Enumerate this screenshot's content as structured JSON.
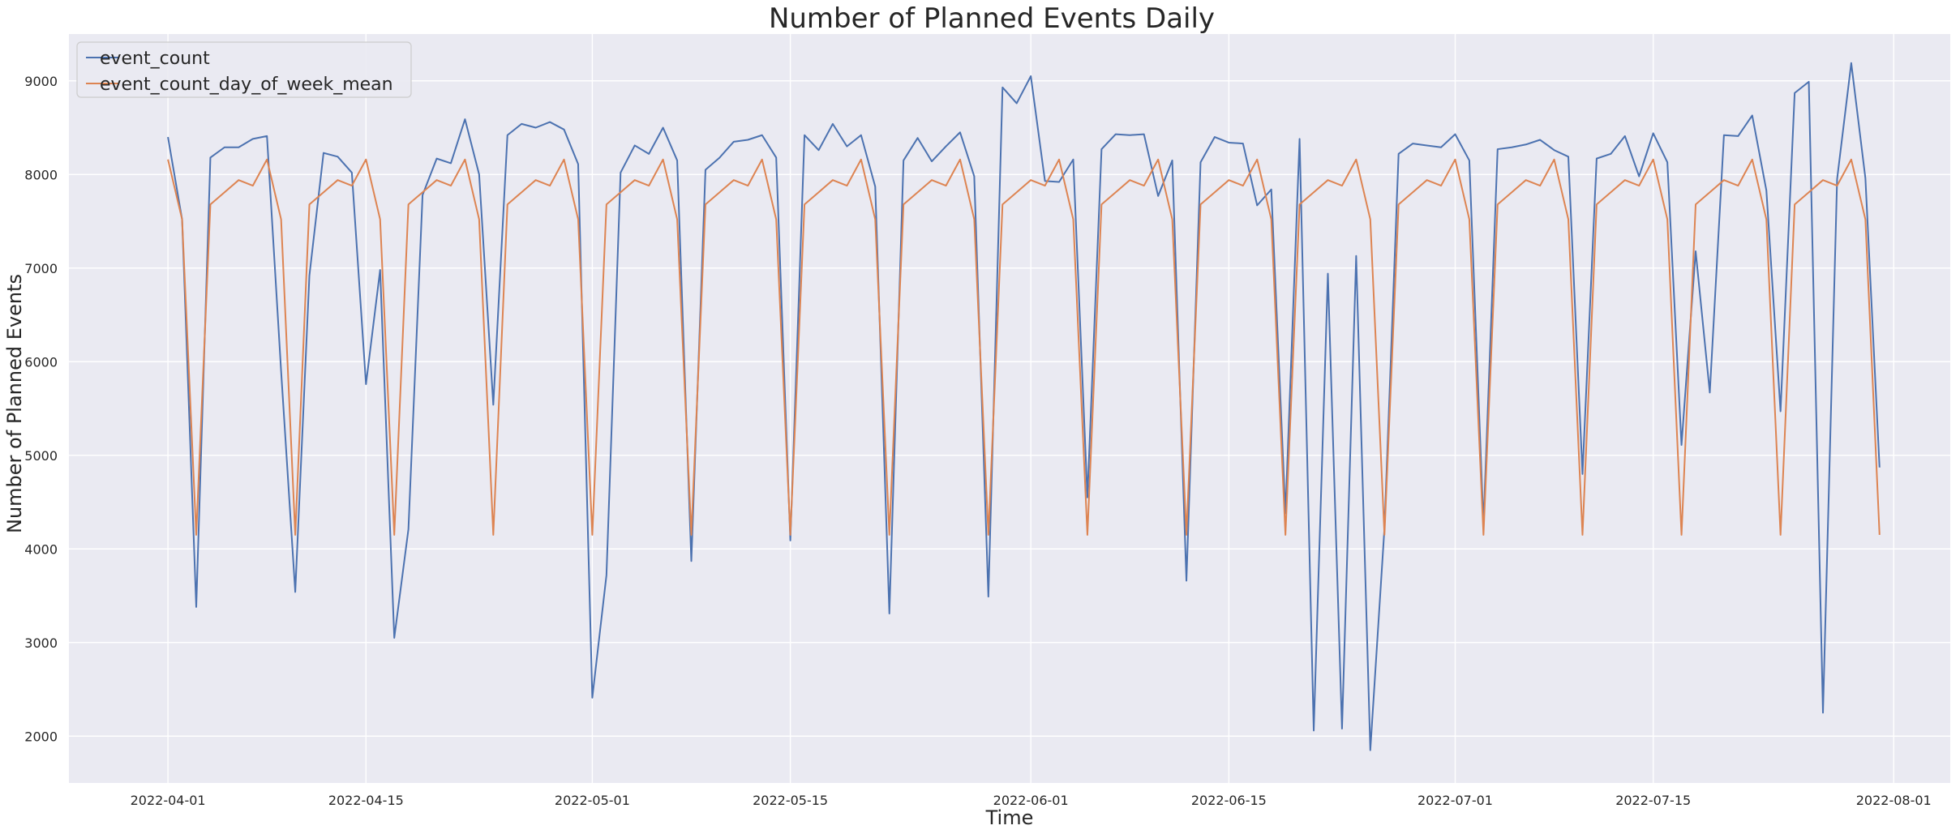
{
  "chart_data": {
    "type": "line",
    "title": "Number of Planned Events Daily",
    "xlabel": "Time",
    "ylabel": "Number of Planned Events",
    "x_start": "2022-04-01",
    "x_end": "2022-07-30",
    "xlim": [
      "2022-03-25",
      "2022-08-05"
    ],
    "ylim": [
      1500,
      9500
    ],
    "x_ticks": [
      {
        "date": "2022-04-01",
        "label": "2022-04-01"
      },
      {
        "date": "2022-04-15",
        "label": "2022-04-15"
      },
      {
        "date": "2022-05-01",
        "label": "2022-05-01"
      },
      {
        "date": "2022-05-15",
        "label": "2022-05-15"
      },
      {
        "date": "2022-06-01",
        "label": "2022-06-01"
      },
      {
        "date": "2022-06-15",
        "label": "2022-06-15"
      },
      {
        "date": "2022-07-01",
        "label": "2022-07-01"
      },
      {
        "date": "2022-07-15",
        "label": "2022-07-15"
      },
      {
        "date": "2022-08-01",
        "label": "2022-08-01"
      }
    ],
    "y_ticks": [
      2000,
      3000,
      4000,
      5000,
      6000,
      7000,
      8000,
      9000
    ],
    "grid": true,
    "legend_position": "top-left",
    "background": "#eaeaf2",
    "series": [
      {
        "name": "event_count",
        "color": "#4c72b0",
        "values": [
          8400,
          7520,
          3380,
          8180,
          8290,
          8290,
          8380,
          8410,
          5900,
          3540,
          6920,
          8230,
          8190,
          8020,
          5760,
          6980,
          3050,
          4210,
          7780,
          8170,
          8120,
          8590,
          8000,
          5540,
          8420,
          8540,
          8500,
          8560,
          8480,
          8110,
          2410,
          3720,
          8020,
          8310,
          8220,
          8500,
          8150,
          3870,
          8050,
          8180,
          8350,
          8370,
          8420,
          8180,
          4090,
          8420,
          8260,
          8540,
          8300,
          8420,
          7870,
          3310,
          8150,
          8390,
          8140,
          8300,
          8450,
          7980,
          3490,
          8930,
          8760,
          9050,
          7930,
          7920,
          8160,
          4550,
          8270,
          8430,
          8420,
          8430,
          7770,
          8150,
          3660,
          8130,
          8400,
          8340,
          8330,
          7670,
          7840,
          4380,
          8380,
          2060,
          6940,
          2080,
          7130,
          1850,
          4220,
          8220,
          8330,
          8310,
          8290,
          8430,
          8150,
          4260,
          8270,
          8290,
          8320,
          8370,
          8260,
          8190,
          4800,
          8170,
          8220,
          8410,
          7980,
          8440,
          8130,
          5110,
          7180,
          5670,
          8420,
          8410,
          8630,
          7830,
          5470,
          8870,
          8990,
          2250,
          7950,
          9190,
          7960,
          4870
        ]
      },
      {
        "name": "event_count_day_of_week_mean",
        "color": "#dd8452",
        "values": [
          8160,
          7520,
          4150,
          7680,
          7810,
          7940,
          7880,
          8160,
          7520,
          4150,
          7680,
          7810,
          7940,
          7880,
          8160,
          7520,
          4150,
          7680,
          7810,
          7940,
          7880,
          8160,
          7520,
          4150,
          7680,
          7810,
          7940,
          7880,
          8160,
          7520,
          4150,
          7680,
          7810,
          7940,
          7880,
          8160,
          7520,
          4150,
          7680,
          7810,
          7940,
          7880,
          8160,
          7520,
          4150,
          7680,
          7810,
          7940,
          7880,
          8160,
          7520,
          4150,
          7680,
          7810,
          7940,
          7880,
          8160,
          7520,
          4150,
          7680,
          7810,
          7940,
          7880,
          8160,
          7520,
          4150,
          7680,
          7810,
          7940,
          7880,
          8160,
          7520,
          4150,
          7680,
          7810,
          7940,
          7880,
          8160,
          7520,
          4150,
          7680,
          7810,
          7940,
          7880,
          8160,
          7520,
          4150,
          7680,
          7810,
          7940,
          7880,
          8160,
          7520,
          4150,
          7680,
          7810,
          7940,
          7880,
          8160,
          7520,
          4150,
          7680,
          7810,
          7940,
          7880,
          8160,
          7520,
          4150,
          7680,
          7810,
          7940,
          7880,
          8160,
          7520,
          4150,
          7680,
          7810,
          7940,
          7880,
          8160,
          7520,
          4150
        ]
      }
    ]
  }
}
